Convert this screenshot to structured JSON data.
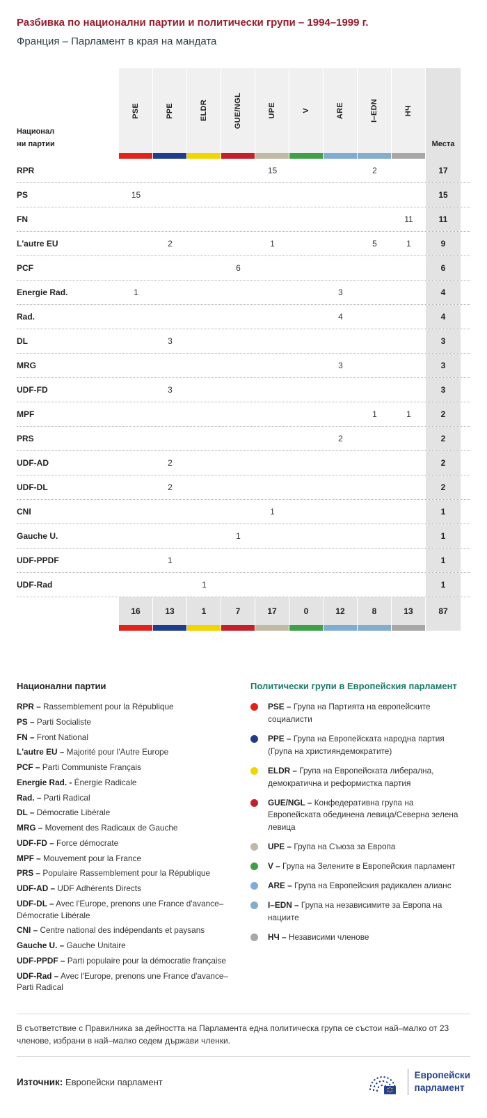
{
  "theme": {
    "title_color": "#981b2c",
    "subtitle_color": "#2c3e46",
    "groups_legend_title_color": "#1a7a68",
    "ep_logo_blue": "#24408f",
    "table_header_bg": "#f0f0f0",
    "seats_column_bg": "#e3e3e3"
  },
  "chart_data": {
    "type": "table",
    "title": "Разбивка по национални партии и политически групи – 1994–1999 г.",
    "subtitle": "Франция – Парламент в края на мандата",
    "row_header": "Национални партии",
    "seats_label": "Места",
    "columns": [
      {
        "code": "PSE",
        "color": "#e2231a"
      },
      {
        "code": "PPE",
        "color": "#1f3d8c"
      },
      {
        "code": "ELDR",
        "color": "#f0d500"
      },
      {
        "code": "GUE/NGL",
        "color": "#c3202c"
      },
      {
        "code": "UPE",
        "color": "#c1b9a4"
      },
      {
        "code": "V",
        "color": "#3fa047"
      },
      {
        "code": "ARE",
        "color": "#7fadd2"
      },
      {
        "code": "I–EDN",
        "color": "#84adcb"
      },
      {
        "code": "НЧ",
        "color": "#a7a7a7"
      }
    ],
    "rows": [
      {
        "party": "RPR",
        "values": [
          "",
          "",
          "",
          "",
          "15",
          "",
          "",
          "2",
          ""
        ],
        "seats": "17"
      },
      {
        "party": "PS",
        "values": [
          "15",
          "",
          "",
          "",
          "",
          "",
          "",
          "",
          ""
        ],
        "seats": "15"
      },
      {
        "party": "FN",
        "values": [
          "",
          "",
          "",
          "",
          "",
          "",
          "",
          "",
          "11"
        ],
        "seats": "11"
      },
      {
        "party": "L'autre EU",
        "values": [
          "",
          "2",
          "",
          "",
          "1",
          "",
          "",
          "5",
          "1"
        ],
        "seats": "9"
      },
      {
        "party": "PCF",
        "values": [
          "",
          "",
          "",
          "6",
          "",
          "",
          "",
          "",
          ""
        ],
        "seats": "6"
      },
      {
        "party": "Energie Rad.",
        "values": [
          "1",
          "",
          "",
          "",
          "",
          "",
          "3",
          "",
          ""
        ],
        "seats": "4"
      },
      {
        "party": "Rad.",
        "values": [
          "",
          "",
          "",
          "",
          "",
          "",
          "4",
          "",
          ""
        ],
        "seats": "4"
      },
      {
        "party": "DL",
        "values": [
          "",
          "3",
          "",
          "",
          "",
          "",
          "",
          "",
          ""
        ],
        "seats": "3"
      },
      {
        "party": "MRG",
        "values": [
          "",
          "",
          "",
          "",
          "",
          "",
          "3",
          "",
          ""
        ],
        "seats": "3"
      },
      {
        "party": "UDF-FD",
        "values": [
          "",
          "3",
          "",
          "",
          "",
          "",
          "",
          "",
          ""
        ],
        "seats": "3"
      },
      {
        "party": "MPF",
        "values": [
          "",
          "",
          "",
          "",
          "",
          "",
          "",
          "1",
          "1"
        ],
        "seats": "2"
      },
      {
        "party": "PRS",
        "values": [
          "",
          "",
          "",
          "",
          "",
          "",
          "2",
          "",
          ""
        ],
        "seats": "2"
      },
      {
        "party": "UDF-AD",
        "values": [
          "",
          "2",
          "",
          "",
          "",
          "",
          "",
          "",
          ""
        ],
        "seats": "2"
      },
      {
        "party": "UDF-DL",
        "values": [
          "",
          "2",
          "",
          "",
          "",
          "",
          "",
          "",
          ""
        ],
        "seats": "2"
      },
      {
        "party": "CNI",
        "values": [
          "",
          "",
          "",
          "",
          "1",
          "",
          "",
          "",
          ""
        ],
        "seats": "1"
      },
      {
        "party": "Gauche U.",
        "values": [
          "",
          "",
          "",
          "1",
          "",
          "",
          "",
          "",
          ""
        ],
        "seats": "1"
      },
      {
        "party": "UDF-PPDF",
        "values": [
          "",
          "1",
          "",
          "",
          "",
          "",
          "",
          "",
          ""
        ],
        "seats": "1"
      },
      {
        "party": "UDF-Rad",
        "values": [
          "",
          "",
          "1",
          "",
          "",
          "",
          "",
          "",
          ""
        ],
        "seats": "1"
      }
    ],
    "totals": {
      "values": [
        "16",
        "13",
        "1",
        "7",
        "17",
        "0",
        "12",
        "8",
        "13"
      ],
      "seats": "87"
    }
  },
  "legend_parties": {
    "title": "Национални партии",
    "items": [
      {
        "label": "RPR –",
        "text": "Rassemblement pour la République"
      },
      {
        "label": "PS –",
        "text": "Parti Socialiste"
      },
      {
        "label": "FN –",
        "text": "Front National"
      },
      {
        "label": "L'autre EU –",
        "text": "Majorité pour l'Autre Europe"
      },
      {
        "label": "PCF –",
        "text": "Parti Communiste Français"
      },
      {
        "label": "Energie Rad. -",
        "text": "Énergie Radicale"
      },
      {
        "label": "Rad. –",
        "text": "Parti Radical"
      },
      {
        "label": "DL –",
        "text": "Démocratie Libérale"
      },
      {
        "label": "MRG –",
        "text": "Movement des Radicaux de Gauche"
      },
      {
        "label": "UDF-FD –",
        "text": "Force démocrate"
      },
      {
        "label": "MPF –",
        "text": "Mouvement pour la France"
      },
      {
        "label": "PRS –",
        "text": "Populaire Rassemblement pour la République"
      },
      {
        "label": "UDF-AD –",
        "text": "UDF Adhérents Directs"
      },
      {
        "label": "UDF-DL –",
        "text": "Avec l'Europe, prenons une France d'avance– Démocratie Libérale"
      },
      {
        "label": "CNI –",
        "text": "Centre national des indépendants et paysans"
      },
      {
        "label": "Gauche U. –",
        "text": "Gauche Unitaire"
      },
      {
        "label": "UDF-PPDF –",
        "text": "Parti populaire pour la démocratie française"
      },
      {
        "label": "UDF-Rad –",
        "text": "Avec l'Europe, prenons une France d'avance– Parti Radical"
      }
    ]
  },
  "legend_groups": {
    "title": "Политически групи в Европейския парламент",
    "items": [
      {
        "label": "PSE –",
        "color": "#e2231a",
        "text": "Група на Партията на европейските социалисти"
      },
      {
        "label": "PPE –",
        "color": "#1f3d8c",
        "text": "Група на Европейската народна партия (Група на християндемократите)"
      },
      {
        "label": "ELDR –",
        "color": "#f0d500",
        "text": "Група на Европейската либерална, демократична и реформистка партия"
      },
      {
        "label": "GUE/NGL –",
        "color": "#c3202c",
        "text": "Конфедеративна група на Европейската обединена левица/Северна зелена левица"
      },
      {
        "label": "UPE –",
        "color": "#c1b9a4",
        "text": "Група на Съюза за Европа"
      },
      {
        "label": "V –",
        "color": "#3fa047",
        "text": "Група на Зелените в Европейския парламент"
      },
      {
        "label": "ARE –",
        "color": "#7fadd2",
        "text": "Група на Европейския радикален алианс"
      },
      {
        "label": "I–EDN –",
        "color": "#84adcb",
        "text": "Група на независимите за Европа на нациите"
      },
      {
        "label": "НЧ –",
        "color": "#a7a7a7",
        "text": "Независими членове"
      }
    ]
  },
  "footer": {
    "note": "В съответствие с Правилника за дейността на Парламента една политическа група се състои най–малко от 23 членове, избрани в най–малко седем държави членки.",
    "source_label": "Източник:",
    "source_text": "Европейски парламент",
    "logo_line1": "Европейски",
    "logo_line2": "парламент"
  }
}
